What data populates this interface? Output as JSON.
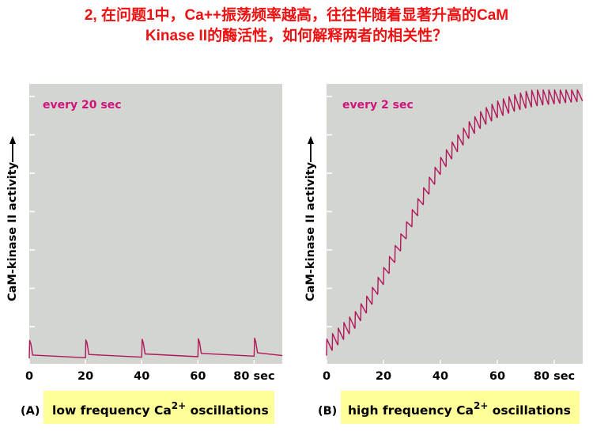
{
  "slide": {
    "title_line1": "2, 在问题1中，Ca++振荡频率越高，往往伴随着显著升高的CaM",
    "title_line2": "Kinase II的酶活性，如何解释两者的相关性？"
  },
  "colors": {
    "title": "#ee1111",
    "plot_background": "#d3d5d1",
    "trace": "#b0165a",
    "annotation": "#d0137b",
    "caption_background": "#ffff99",
    "axis": "#000000"
  },
  "chart_data": [
    {
      "type": "line",
      "panel_label": "(A)",
      "annotation": "every 20 sec",
      "ylabel": "CaM-kinase II activity",
      "xlabel_unit": "sec",
      "x_ticks": [
        "0",
        "20",
        "40",
        "60",
        "80 sec"
      ],
      "xlim": [
        0,
        90
      ],
      "ylim": [
        0,
        1
      ],
      "grid": false,
      "caption": {
        "prefix": "low frequency Ca",
        "superscript": "2+",
        "suffix": " oscillations"
      },
      "spike_period": 20,
      "spike_times": [
        0,
        20,
        40,
        60,
        80
      ],
      "baseline": 0.02,
      "spike_height": 0.065,
      "series": [
        {
          "x": [
            0,
            0,
            20,
            20,
            40,
            40,
            60,
            60,
            80,
            80,
            90
          ],
          "y": [
            0.02,
            0.085,
            0.02,
            0.09,
            0.022,
            0.092,
            0.024,
            0.094,
            0.026,
            0.096,
            0.03
          ]
        }
      ]
    },
    {
      "type": "line",
      "panel_label": "(B)",
      "annotation": "every 2 sec",
      "ylabel": "CaM-kinase II activity",
      "xlabel_unit": "sec",
      "x_ticks": [
        "0",
        "20",
        "40",
        "60",
        "80 sec"
      ],
      "xlim": [
        0,
        90
      ],
      "ylim": [
        0,
        1
      ],
      "grid": false,
      "caption": {
        "prefix": "high frequency Ca",
        "superscript": "2+",
        "suffix": " oscillations"
      },
      "spike_period": 2,
      "spike_height": 0.06,
      "envelope": {
        "x": [
          0,
          5,
          10,
          15,
          20,
          25,
          30,
          35,
          40,
          45,
          50,
          55,
          60,
          65,
          70,
          75,
          80,
          85,
          90
        ],
        "y": [
          0.03,
          0.08,
          0.13,
          0.2,
          0.29,
          0.39,
          0.5,
          0.6,
          0.69,
          0.76,
          0.82,
          0.865,
          0.895,
          0.915,
          0.93,
          0.94,
          0.945,
          0.95,
          0.955
        ]
      }
    }
  ]
}
